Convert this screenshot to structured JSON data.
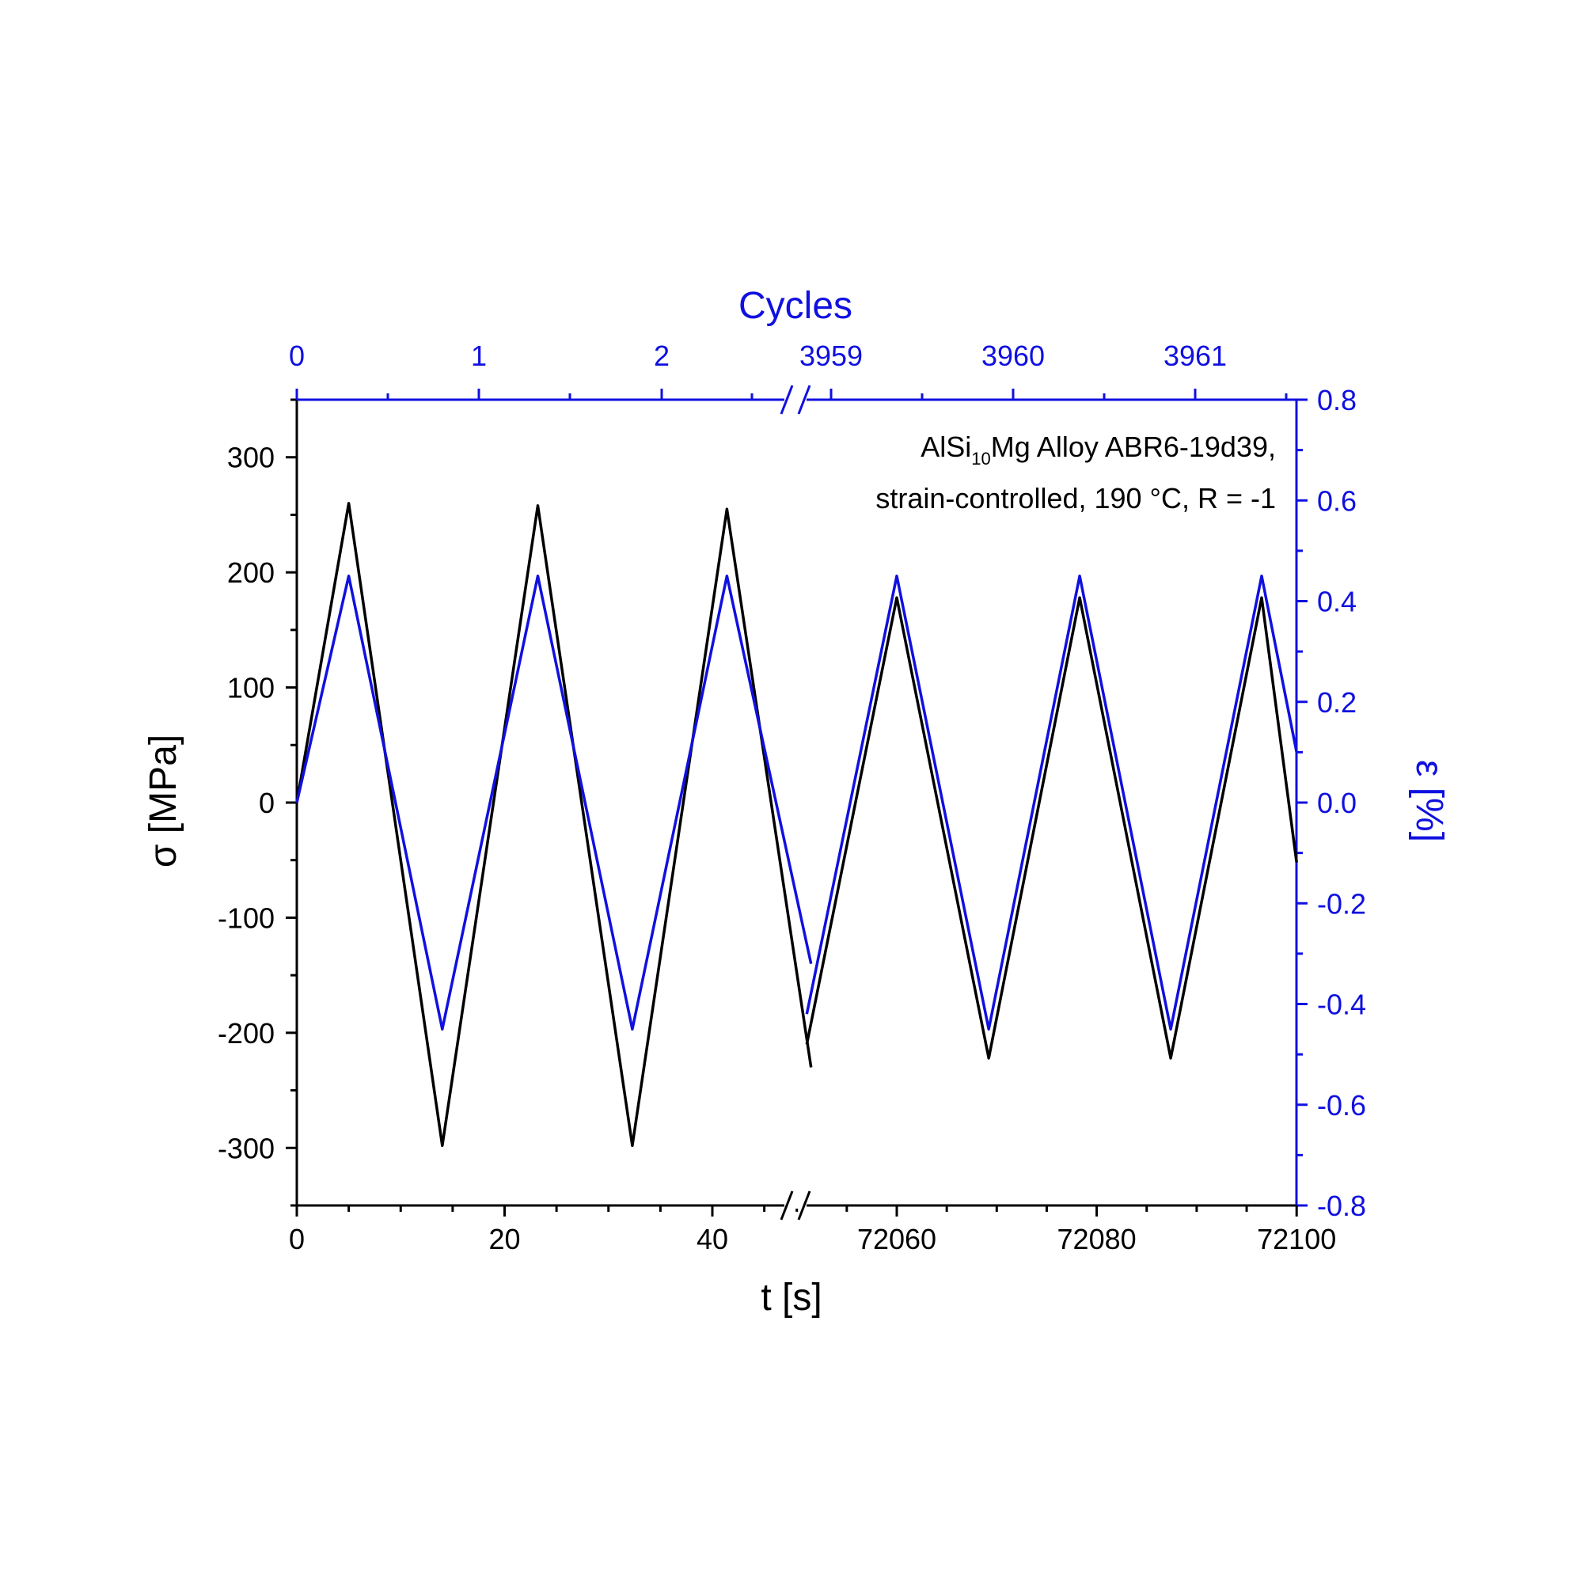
{
  "chart_data": {
    "type": "line",
    "annotation": {
      "line1_prefix": "AlSi",
      "line1_sub": "10",
      "line1_suffix": "Mg Alloy ABR6-19d39,",
      "line2": "strain-controlled, 190 °C, R = -1"
    },
    "xlabel": "t [s]",
    "ylabel_left": "σ [MPa]",
    "ylabel_right": "ε [%]",
    "top_label": "Cycles",
    "x_tick_labels": [
      "0",
      "20",
      "40",
      "72060",
      "72080",
      "72100"
    ],
    "top_tick_labels": [
      "0",
      "1",
      "2",
      "3959",
      "3960",
      "3961"
    ],
    "y_left_ticks": [
      -300,
      -200,
      -100,
      0,
      100,
      200,
      300
    ],
    "y_left_range": [
      -350,
      350
    ],
    "y_right_ticks": [
      -0.8,
      -0.6,
      -0.4,
      -0.2,
      0.0,
      0.2,
      0.4,
      0.6,
      0.8
    ],
    "y_right_tick_labels": [
      "-0.8",
      "-0.6",
      "-0.4",
      "-0.2",
      "0.0",
      "0.2",
      "0.4",
      "0.6",
      "0.8"
    ],
    "y_right_range": [
      -0.8,
      0.8
    ],
    "axis_break": true,
    "colors": {
      "stress": "#000000",
      "strain": "#1010e0"
    },
    "series": [
      {
        "segment": "first",
        "stress": {
          "t": [
            0,
            5,
            14,
            23.2,
            32.3,
            41.4,
            49.5
          ],
          "sigma": [
            0,
            260,
            -298,
            258,
            -298,
            255,
            -230
          ]
        },
        "strain": {
          "t": [
            0,
            5,
            14,
            23.2,
            32.3,
            41.4,
            49.5
          ],
          "eps": [
            0,
            0.45,
            -0.45,
            0.45,
            -0.45,
            0.45,
            -0.32
          ]
        }
      },
      {
        "segment": "second",
        "stress": {
          "t": [
            72051,
            72060,
            72069.2,
            72078.3,
            72087.4,
            72096.5,
            72100
          ],
          "sigma": [
            -210,
            178,
            -222,
            178,
            -222,
            178,
            -52
          ]
        },
        "strain": {
          "t": [
            72051,
            72060,
            72069.2,
            72078.3,
            72087.4,
            72096.5,
            72100
          ],
          "eps": [
            -0.42,
            0.45,
            -0.45,
            0.45,
            -0.45,
            0.45,
            0.1
          ]
        }
      }
    ]
  }
}
